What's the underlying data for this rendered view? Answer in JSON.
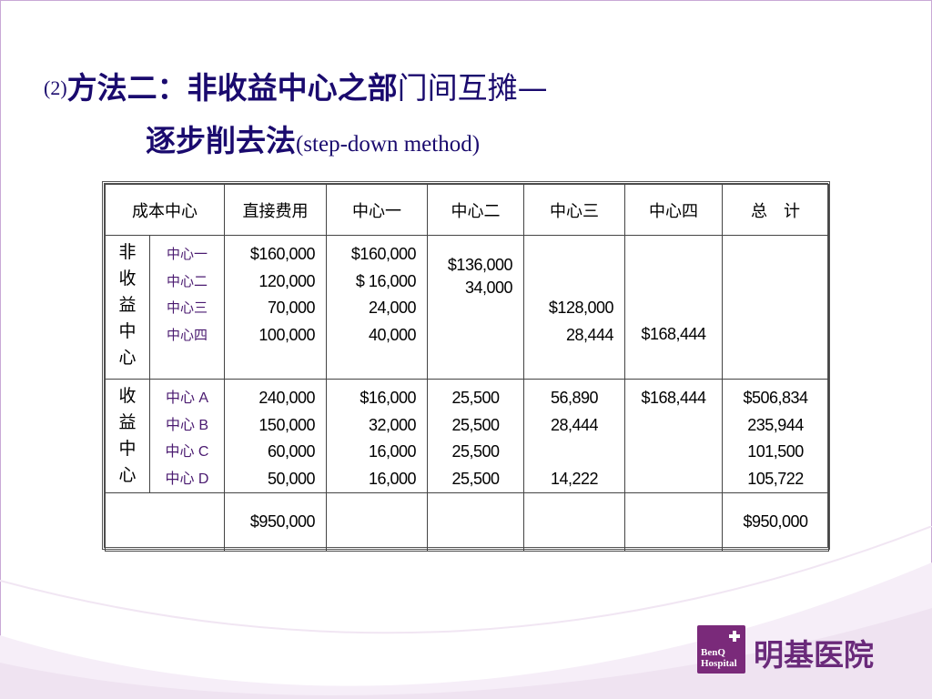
{
  "title": {
    "line1_num": "(2)",
    "line1_bold": "方法二：非收益中心之部",
    "line1_light": "门间互摊—",
    "line2_bold": "逐步削去法",
    "line2_en": "(step-down method)"
  },
  "table": {
    "headers": [
      "成本中心",
      "直接费用",
      "中心一",
      "中心二",
      "中心三",
      "中心四",
      "总　计"
    ],
    "group1": {
      "label_chars": [
        "非",
        "收",
        "益",
        "中",
        "心"
      ],
      "names": [
        "中心一",
        "中心二",
        "中心三",
        "中心四"
      ],
      "direct": [
        "$160,000",
        "120,000",
        "70,000",
        "100,000"
      ],
      "c1": [
        "$160,000",
        "$ 16,000",
        "24,000",
        "40,000"
      ],
      "c2": [
        "$136,000",
        "34,000"
      ],
      "c3": [
        "$128,000",
        "28,444"
      ],
      "c4": [
        "$168,444"
      ]
    },
    "group2": {
      "label_chars": [
        "收",
        "益",
        "中",
        "心"
      ],
      "names": [
        "中心 A",
        "中心 B",
        "中心 C",
        "中心 D"
      ],
      "direct": [
        "240,000",
        "150,000",
        "60,000",
        "50,000"
      ],
      "c1": [
        "$16,000",
        "32,000",
        "16,000",
        "16,000"
      ],
      "c2": [
        "25,500",
        "25,500",
        "25,500",
        "25,500"
      ],
      "c3": [
        "56,890",
        "28,444",
        "",
        "14,222"
      ],
      "c4": [
        "$168,444"
      ],
      "total": [
        "$506,834",
        "235,944",
        "101,500",
        "105,722"
      ]
    },
    "totals": {
      "direct": "$950,000",
      "total": "$950,000"
    }
  },
  "logo": {
    "en_line1": "BenQ",
    "en_line2": "Hospital",
    "cn": "明基医院",
    "brand_color": "#7a2a7a"
  },
  "colors": {
    "title": "#1a0a6e",
    "frame": "#c9a8d6",
    "swoosh": "#efe3f1"
  }
}
